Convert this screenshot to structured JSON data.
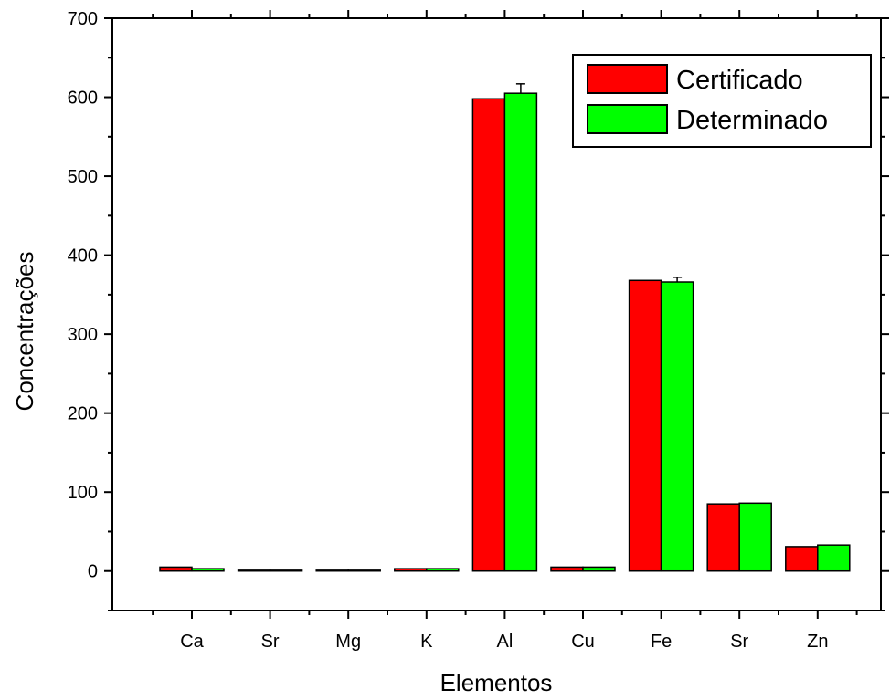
{
  "chart_data": {
    "type": "bar",
    "title": "",
    "xlabel": "Elementos",
    "ylabel": "Concentrações",
    "ylim": [
      -50,
      700
    ],
    "yticks": [
      0,
      100,
      200,
      300,
      400,
      500,
      600,
      700
    ],
    "categories": [
      "Ca",
      "Sr",
      "Mg",
      "K",
      "Al",
      "Cu",
      "Fe",
      "Sr",
      "Zn"
    ],
    "series": [
      {
        "name": "Certificado",
        "color": "#ff0000",
        "values": [
          5,
          1,
          1,
          3,
          598,
          5,
          368,
          85,
          31
        ],
        "errors": [
          0,
          0,
          0,
          0,
          0,
          0,
          0,
          0,
          0
        ]
      },
      {
        "name": "Determinado",
        "color": "#00ff00",
        "values": [
          3,
          1,
          1,
          3,
          605,
          5,
          366,
          86,
          33
        ],
        "errors": [
          0,
          0,
          0,
          0,
          12,
          0,
          6,
          0,
          0
        ]
      }
    ],
    "legend_position": "top-right",
    "grid": false
  }
}
